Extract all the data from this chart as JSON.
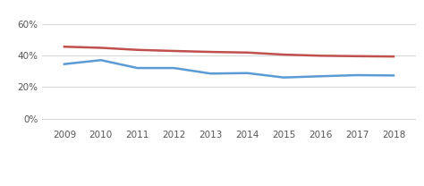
{
  "years": [
    2009,
    2010,
    2011,
    2012,
    2013,
    2014,
    2015,
    2016,
    2017,
    2018
  ],
  "blue_line": [
    0.345,
    0.37,
    0.32,
    0.32,
    0.285,
    0.288,
    0.26,
    0.268,
    0.275,
    0.273
  ],
  "red_line": [
    0.455,
    0.448,
    0.435,
    0.428,
    0.422,
    0.418,
    0.405,
    0.398,
    0.395,
    0.393
  ],
  "blue_color": "#5b9bd5",
  "red_color": "#c0504d",
  "yticks": [
    0.0,
    0.2,
    0.4,
    0.6
  ],
  "ylim": [
    -0.05,
    0.68
  ],
  "xlim": [
    2008.4,
    2018.6
  ],
  "bg_color": "#ffffff",
  "grid_color": "#d9d9d9",
  "tick_fontsize": 7.5,
  "legend_fontsize": 7.5
}
